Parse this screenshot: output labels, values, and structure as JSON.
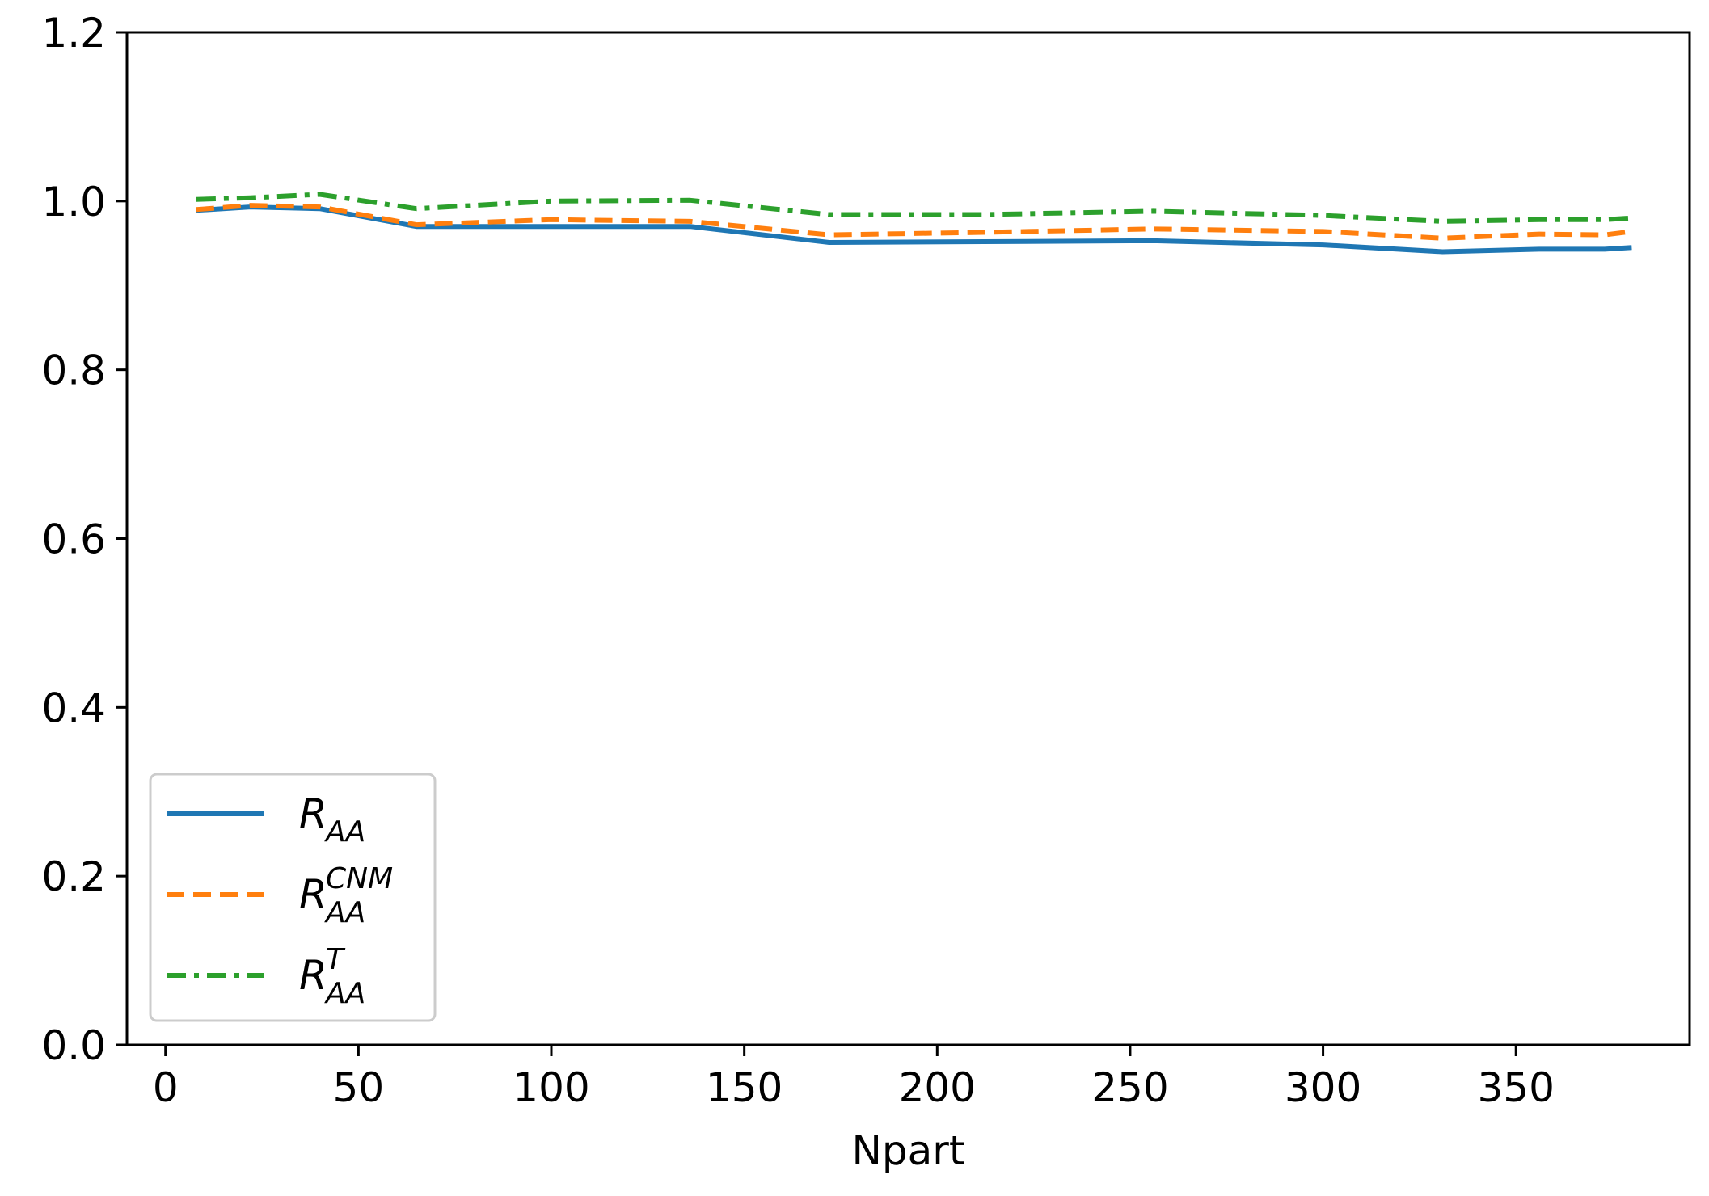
{
  "chart_data": {
    "type": "line",
    "xlabel": "Npart",
    "ylabel": "",
    "title": "",
    "xlim": [
      -10,
      395
    ],
    "ylim": [
      0.0,
      1.2
    ],
    "xticks": [
      0,
      50,
      100,
      150,
      200,
      250,
      300,
      350
    ],
    "yticks": [
      0.0,
      0.2,
      0.4,
      0.6,
      0.8,
      1.0,
      1.2
    ],
    "xtick_labels": [
      "0",
      "50",
      "100",
      "150",
      "200",
      "250",
      "300",
      "350"
    ],
    "ytick_labels": [
      "0.0",
      "0.2",
      "0.4",
      "0.6",
      "0.8",
      "1.0",
      "1.2"
    ],
    "grid": false,
    "legend_position": "lower-left",
    "series": [
      {
        "key": "raa",
        "base": "R",
        "sub": "AA",
        "sup": "",
        "color": "#1f77b4",
        "style": "solid",
        "x": [
          8,
          22,
          40,
          65,
          100,
          136,
          172,
          212,
          256,
          300,
          331,
          356,
          373,
          380
        ],
        "y": [
          0.989,
          0.993,
          0.991,
          0.97,
          0.97,
          0.97,
          0.951,
          0.952,
          0.953,
          0.948,
          0.94,
          0.943,
          0.943,
          0.945
        ]
      },
      {
        "key": "raa_cnm",
        "base": "R",
        "sub": "AA",
        "sup": "CNM",
        "color": "#ff7f0e",
        "style": "dashed",
        "x": [
          8,
          22,
          40,
          65,
          100,
          136,
          172,
          212,
          256,
          300,
          331,
          356,
          373,
          380
        ],
        "y": [
          0.99,
          0.995,
          0.993,
          0.972,
          0.978,
          0.976,
          0.96,
          0.963,
          0.967,
          0.964,
          0.956,
          0.961,
          0.96,
          0.964
        ]
      },
      {
        "key": "raa_t",
        "base": "R",
        "sub": "AA",
        "sup": "T",
        "color": "#2ca02c",
        "style": "dashdot",
        "x": [
          8,
          22,
          40,
          65,
          100,
          136,
          172,
          212,
          256,
          300,
          331,
          356,
          373,
          380
        ],
        "y": [
          1.002,
          1.004,
          1.008,
          0.991,
          1.0,
          1.001,
          0.984,
          0.984,
          0.988,
          0.983,
          0.976,
          0.978,
          0.978,
          0.98
        ]
      }
    ]
  }
}
